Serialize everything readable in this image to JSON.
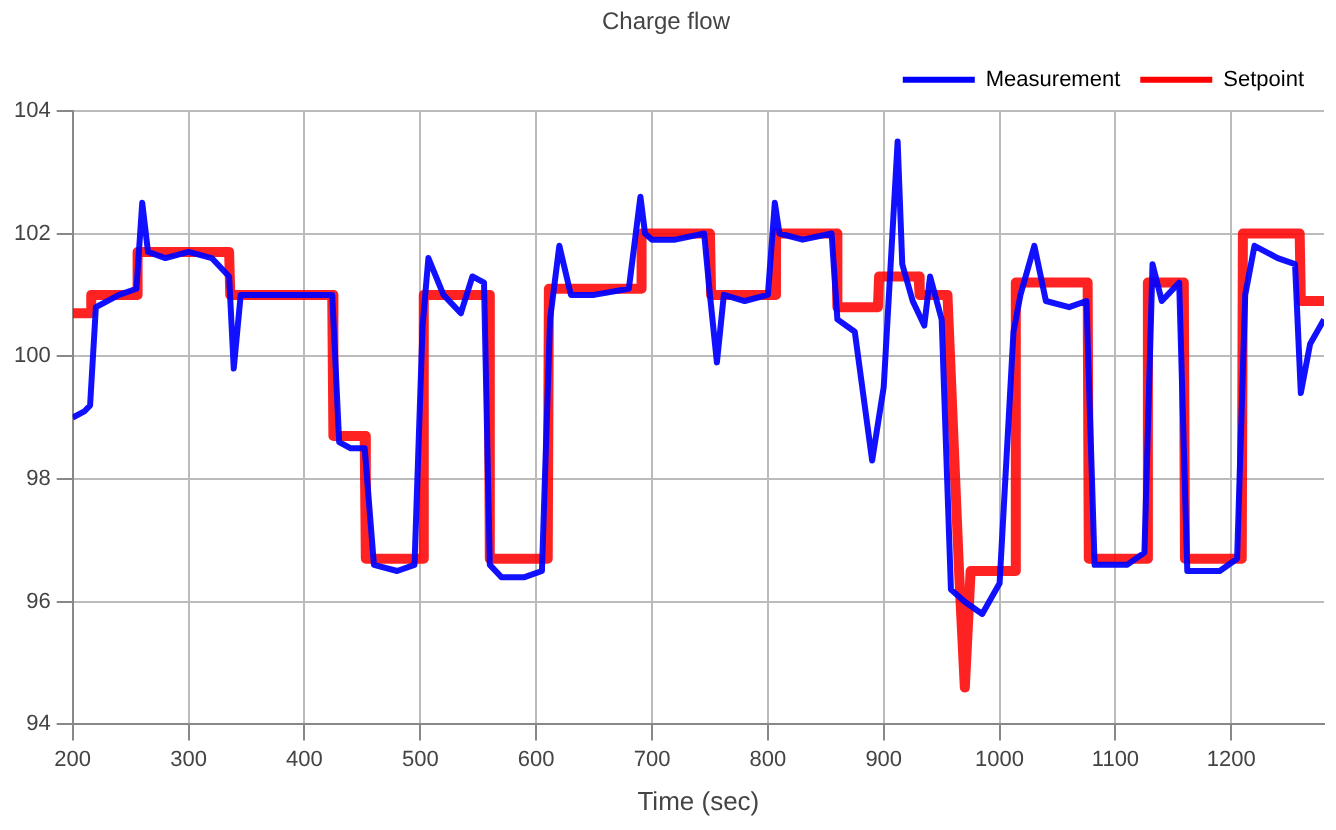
{
  "chart_data": {
    "type": "line",
    "title": "Charge flow",
    "xlabel": "Time (sec)",
    "xlim": [
      200,
      1280
    ],
    "xticks": [
      200,
      300,
      400,
      500,
      600,
      700,
      800,
      900,
      1000,
      1100,
      1200
    ],
    "ylim": [
      94,
      104
    ],
    "yticks": [
      94,
      96,
      98,
      100,
      102,
      104
    ],
    "grid": true,
    "legend": "top right",
    "marker": "none",
    "line_style": "solid",
    "series": [
      {
        "name": "Measurement",
        "color": "#0000ff",
        "x": [
          200,
          210,
          215,
          220,
          240,
          255,
          260,
          265,
          280,
          300,
          320,
          335,
          339,
          345,
          360,
          400,
          424,
          430,
          440,
          452,
          460,
          480,
          495,
          502,
          507,
          520,
          535,
          545,
          555,
          560,
          570,
          590,
          605,
          612,
          620,
          630,
          650,
          680,
          690,
          694,
          700,
          720,
          745,
          750,
          756,
          762,
          780,
          800,
          806,
          810,
          830,
          855,
          860,
          875,
          890,
          900,
          912,
          916,
          925,
          935,
          940,
          950,
          958,
          970,
          985,
          1000,
          1012,
          1018,
          1030,
          1040,
          1060,
          1075,
          1082,
          1090,
          1110,
          1125,
          1132,
          1140,
          1155,
          1162,
          1170,
          1190,
          1205,
          1212,
          1220,
          1240,
          1255,
          1260,
          1268,
          1280
        ],
        "values": [
          99.0,
          99.1,
          99.2,
          100.8,
          101.0,
          101.1,
          102.5,
          101.7,
          101.6,
          101.7,
          101.6,
          101.3,
          99.8,
          101.0,
          101.0,
          101.0,
          101.0,
          98.6,
          98.5,
          98.5,
          96.6,
          96.5,
          96.6,
          100.5,
          101.6,
          101.0,
          100.7,
          101.3,
          101.2,
          96.6,
          96.4,
          96.4,
          96.5,
          100.6,
          101.8,
          101.0,
          101.0,
          101.1,
          102.6,
          102.0,
          101.9,
          101.9,
          102.0,
          101.0,
          99.9,
          101.0,
          100.9,
          101.0,
          102.5,
          102.0,
          101.9,
          102.0,
          100.6,
          100.4,
          98.3,
          99.5,
          103.5,
          101.5,
          100.9,
          100.5,
          101.3,
          100.6,
          96.2,
          96.0,
          95.8,
          96.3,
          100.4,
          101.0,
          101.8,
          100.9,
          100.8,
          100.9,
          96.6,
          96.6,
          96.6,
          96.8,
          101.5,
          100.9,
          101.2,
          96.5,
          96.5,
          96.5,
          96.7,
          101.0,
          101.8,
          101.6,
          101.5,
          99.4,
          100.2,
          100.6
        ]
      },
      {
        "name": "Setpoint",
        "color": "#ff0000",
        "x": [
          200,
          215,
          216,
          255,
          256,
          335,
          336,
          424,
          425,
          452,
          453,
          502,
          503,
          559,
          560,
          610,
          611,
          690,
          691,
          750,
          751,
          806,
          807,
          859,
          860,
          895,
          896,
          930,
          931,
          955,
          965,
          970,
          975,
          1013,
          1014,
          1076,
          1077,
          1127,
          1128,
          1159,
          1160,
          1209,
          1210,
          1259,
          1260,
          1280
        ],
        "values": [
          100.7,
          100.7,
          101.0,
          101.0,
          101.7,
          101.7,
          101.0,
          101.0,
          98.7,
          98.7,
          96.7,
          96.7,
          101.0,
          101.0,
          96.7,
          96.7,
          101.1,
          101.1,
          102.0,
          102.0,
          101.0,
          101.0,
          102.0,
          102.0,
          100.8,
          100.8,
          101.3,
          101.3,
          101.0,
          101.0,
          96.5,
          94.6,
          96.5,
          96.5,
          101.2,
          101.2,
          96.7,
          96.7,
          101.2,
          101.2,
          96.7,
          96.7,
          102.0,
          102.0,
          100.9,
          100.9
        ]
      }
    ]
  }
}
